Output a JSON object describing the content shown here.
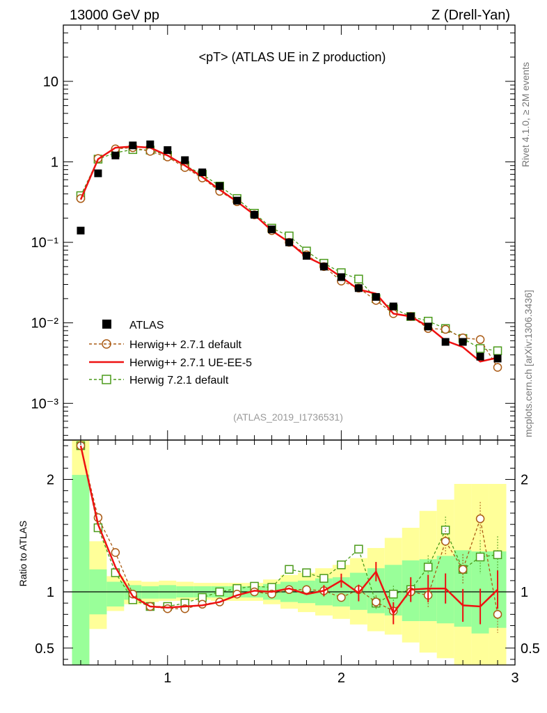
{
  "header": {
    "left": "13000 GeV pp",
    "right": "Z (Drell-Yan)"
  },
  "side_labels": {
    "rivet": "Rivet 4.1.0, ≥ 2M events",
    "mcplots": "mcplots.cern.ch [arXiv:1306.3436]"
  },
  "chart_data": {
    "type": "scatter",
    "title": "<pT> (ATLAS UE in Z production)",
    "analysis_tag": "(ATLAS_2019_I1736531)",
    "x": [
      0.5,
      0.6,
      0.7,
      0.8,
      0.9,
      1.0,
      1.1,
      1.2,
      1.3,
      1.4,
      1.5,
      1.6,
      1.7,
      1.8,
      1.9,
      2.0,
      2.1,
      2.2,
      2.3,
      2.4,
      2.5,
      2.6,
      2.7,
      2.8,
      2.9
    ],
    "xlim": [
      0.4,
      3.0
    ],
    "main_panel": {
      "yscale": "log",
      "ylim": [
        0.00035,
        50
      ],
      "ytick_labels": [
        "10",
        "1",
        "10⁻¹",
        "10⁻²",
        "10⁻³"
      ]
    },
    "ratio_panel": {
      "ylabel": "Ratio to ATLAS",
      "ylim": [
        0.35,
        2.35
      ],
      "ytick_labels": [
        "0.5",
        "1",
        "2"
      ],
      "band_inner_lo": [
        0.35,
        0.8,
        0.87,
        0.93,
        0.94,
        0.94,
        0.95,
        0.95,
        0.95,
        0.95,
        0.95,
        0.93,
        0.91,
        0.9,
        0.88,
        0.87,
        0.84,
        0.81,
        0.79,
        0.74,
        0.74,
        0.72,
        0.69,
        0.63,
        0.68
      ],
      "band_inner_hi": [
        2.04,
        1.2,
        1.09,
        1.06,
        1.05,
        1.06,
        1.05,
        1.05,
        1.05,
        1.05,
        1.05,
        1.07,
        1.09,
        1.1,
        1.12,
        1.13,
        1.17,
        1.21,
        1.24,
        1.28,
        1.29,
        1.32,
        1.37,
        1.36,
        1.36
      ],
      "band_outer_lo": [
        0.35,
        0.67,
        0.83,
        0.89,
        0.91,
        0.92,
        0.92,
        0.93,
        0.92,
        0.92,
        0.92,
        0.89,
        0.85,
        0.82,
        0.79,
        0.76,
        0.71,
        0.65,
        0.62,
        0.55,
        0.46,
        0.41,
        0.35,
        0.35,
        0.35
      ],
      "band_outer_hi": [
        2.35,
        1.45,
        1.14,
        1.1,
        1.09,
        1.1,
        1.09,
        1.08,
        1.08,
        1.08,
        1.08,
        1.11,
        1.15,
        1.17,
        1.21,
        1.24,
        1.3,
        1.39,
        1.48,
        1.57,
        1.72,
        1.82,
        1.96,
        1.96,
        1.96
      ]
    },
    "series": [
      {
        "name": "ATLAS",
        "style": "data",
        "color": "#000000",
        "values": [
          0.14,
          0.72,
          1.2,
          1.6,
          1.65,
          1.4,
          1.05,
          0.74,
          0.5,
          0.33,
          0.22,
          0.145,
          0.1,
          0.068,
          0.05,
          0.037,
          0.027,
          0.021,
          0.016,
          0.012,
          0.009,
          0.0058,
          0.0058,
          0.0038,
          0.0036
        ]
      },
      {
        "name": "Herwig++ 2.7.1 default",
        "style": "circle-dashed",
        "color": "#aa5a14",
        "values": [
          0.35,
          1.1,
          1.45,
          1.5,
          1.35,
          1.15,
          0.85,
          0.63,
          0.43,
          0.32,
          0.22,
          0.14,
          0.1,
          0.07,
          0.05,
          0.033,
          0.027,
          0.019,
          0.013,
          0.012,
          0.0085,
          0.0083,
          0.0065,
          0.0062,
          0.0028
        ],
        "ratio": [
          2.3,
          1.66,
          1.35,
          0.98,
          0.87,
          0.85,
          0.85,
          0.89,
          0.91,
          0.98,
          1.0,
          0.98,
          1.02,
          1.02,
          1.01,
          0.95,
          1.02,
          0.91,
          0.83,
          1.0,
          0.97,
          1.45,
          1.2,
          1.65,
          0.8
        ]
      },
      {
        "name": "Herwig++ 2.7.1 UE-EE-5",
        "style": "line-solid",
        "color": "#ee1111",
        "values": [
          0.34,
          1.08,
          1.5,
          1.55,
          1.5,
          1.2,
          0.9,
          0.65,
          0.45,
          0.32,
          0.22,
          0.14,
          0.1,
          0.066,
          0.052,
          0.037,
          0.026,
          0.023,
          0.013,
          0.012,
          0.009,
          0.006,
          0.005,
          0.0033,
          0.0037
        ],
        "ratio": [
          2.3,
          1.6,
          1.22,
          0.96,
          0.87,
          0.86,
          0.87,
          0.88,
          0.91,
          0.97,
          1.01,
          1.0,
          1.03,
          0.98,
          1.01,
          1.1,
          0.99,
          1.18,
          0.81,
          1.02,
          1.03,
          1.03,
          0.88,
          0.87,
          1.02
        ]
      },
      {
        "name": "Herwig 7.2.1 default",
        "style": "square-dashed",
        "color": "#4a9a1a",
        "values": [
          0.38,
          1.08,
          1.3,
          1.42,
          1.4,
          1.2,
          0.9,
          0.7,
          0.5,
          0.35,
          0.23,
          0.15,
          0.12,
          0.078,
          0.055,
          0.042,
          0.035,
          0.02,
          0.015,
          0.012,
          0.0105,
          0.0085,
          0.0064,
          0.0048,
          0.0045
        ],
        "ratio": [
          2.3,
          1.57,
          1.17,
          0.93,
          0.87,
          0.87,
          0.9,
          0.95,
          1.0,
          1.03,
          1.05,
          1.04,
          1.2,
          1.17,
          1.12,
          1.24,
          1.38,
          0.9,
          0.98,
          1.02,
          1.22,
          1.55,
          1.2,
          1.31,
          1.33
        ]
      }
    ]
  }
}
